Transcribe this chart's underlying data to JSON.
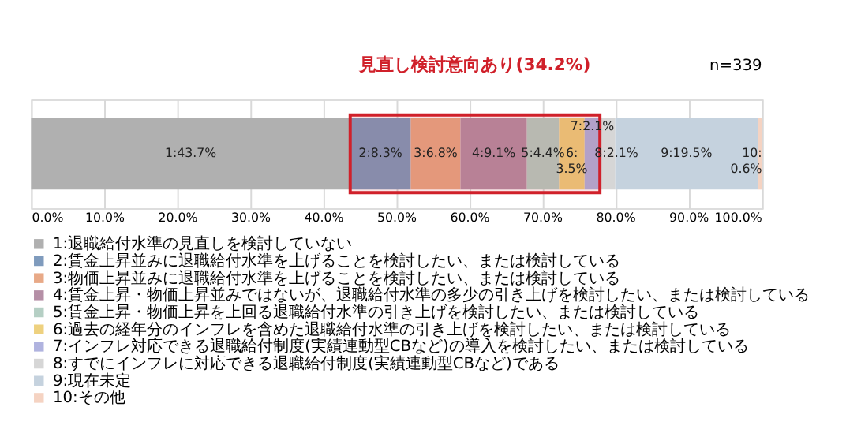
{
  "chart_data": {
    "type": "bar",
    "orientation": "horizontal",
    "stacked": true,
    "categories": [
      null
    ],
    "series": [
      {
        "name": "1:退職給付水準の見直しを検討していない",
        "color": "#b0b0b0",
        "values": [
          43.7
        ],
        "value_labels": [
          "1:43.7%"
        ]
      },
      {
        "name": "2:賃金上昇並みに退職給付水準を上げることを検討したい、または検討している",
        "color": "#7f9bbd",
        "values": [
          8.3
        ],
        "value_labels": [
          "2:8.3%"
        ]
      },
      {
        "name": "3:物価上昇並みに退職給付水準を上げることを検討したい、または検討している",
        "color": "#e8a987",
        "values": [
          6.8
        ],
        "value_labels": [
          "3:6.8%"
        ]
      },
      {
        "name": "4:賃金上昇・物価上昇並みではないが、退職給付水準の多少の引き上げを検討したい、または検討している",
        "color": "#b58fa6",
        "values": [
          9.1
        ],
        "value_labels": [
          "4:9.1%"
        ]
      },
      {
        "name": "5:賃金上昇・物価上昇を上回る退職給付水準の引き上げを検討したい、または検討している",
        "color": "#b5cfc4",
        "values": [
          4.4
        ],
        "value_labels": [
          "5:4.4%"
        ]
      },
      {
        "name": "6:過去の経年分のインフレを含めた退職給付水準の引き上げを検討したい、または検討している",
        "color": "#eed17f",
        "values": [
          3.5
        ],
        "value_labels": [
          "6:\n3.5%"
        ]
      },
      {
        "name": "7:インフレ対応できる退職給付制度(実績連動型CBなど)の導入を検討したい、または検討している",
        "color": "#b0b3df",
        "values": [
          2.1
        ],
        "value_labels": [
          "7:2.1%"
        ]
      },
      {
        "name": "8:すでにインフレに対応できる退職給付制度(実績連動型CBなど)である",
        "color": "#d6d6d6",
        "values": [
          2.1
        ],
        "value_labels": [
          "8:2.1%"
        ]
      },
      {
        "name": "9:現在未定",
        "color": "#c5d2de",
        "values": [
          19.5
        ],
        "value_labels": [
          "9:19.5%"
        ]
      },
      {
        "name": "10:その他",
        "color": "#f5d3c2",
        "values": [
          0.6
        ],
        "value_labels": [
          "10:\n0.6%"
        ]
      }
    ],
    "xlim": [
      0,
      100.1
    ],
    "xticks": [
      {
        "value": 0,
        "label": "0.0%"
      },
      {
        "value": 10,
        "label": "10.0%"
      },
      {
        "value": 20,
        "label": "20.0%"
      },
      {
        "value": 30,
        "label": "30.0%"
      },
      {
        "value": 40,
        "label": "40.0%"
      },
      {
        "value": 50,
        "label": "50.0%"
      },
      {
        "value": 60,
        "label": "60.0%"
      },
      {
        "value": 70,
        "label": "70.0%"
      },
      {
        "value": 80,
        "label": "80.0%"
      },
      {
        "value": 90,
        "label": "90.0%"
      },
      {
        "value": 100,
        "label": "100.0%"
      }
    ],
    "bands": [
      {
        "axis": "x",
        "from": 43.7,
        "to": 77.9,
        "label": "見直し検討意向あり(34.2%)",
        "color": "#d0202a"
      }
    ],
    "annotations": [
      "n=339"
    ],
    "grid": "x",
    "legend": "bottom"
  }
}
